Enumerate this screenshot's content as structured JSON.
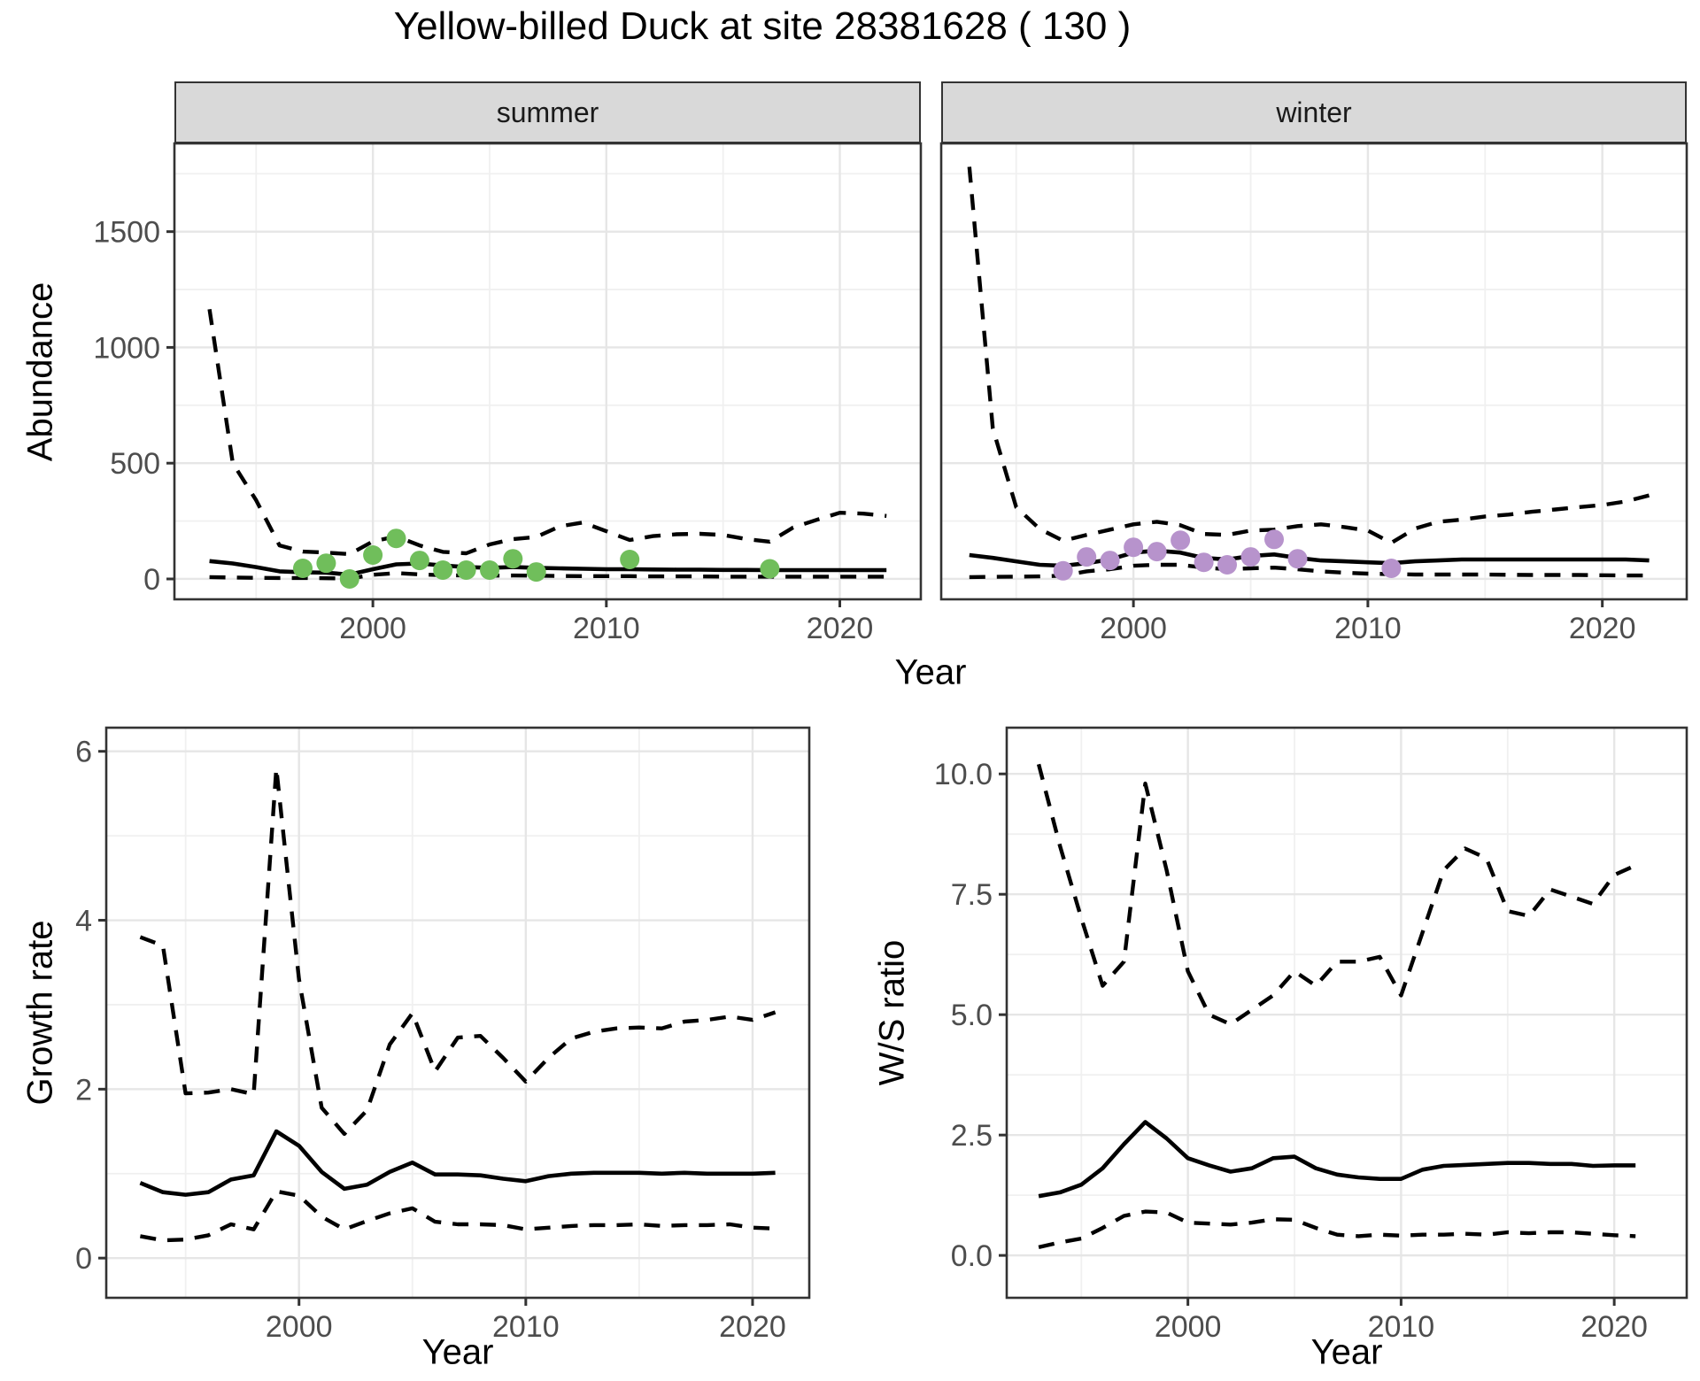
{
  "title": "Yellow-billed Duck at site 28381628 ( 130 )",
  "colors": {
    "summer_point": "#70BE5B",
    "winter_point": "#B793CC",
    "line": "#000000",
    "strip_bg": "#D9D9D9",
    "major_grid": "#E6E6E6",
    "minor_grid": "#F0F0F0",
    "panel_border": "#333333",
    "tick_label": "#4D4D4D"
  },
  "chart_data": [
    {
      "id": "abundance-summer",
      "type": "line",
      "facet_label": "summer",
      "xlabel": "Year",
      "ylabel": "Abundance",
      "xlim": [
        1991.5,
        2023.47
      ],
      "ylim": [
        -88,
        1881
      ],
      "grid": true,
      "legend": "none",
      "x_tick_values": [
        2000,
        2010,
        2020
      ],
      "x_tick_labels": [
        "2000",
        "2010",
        "2020"
      ],
      "x_minor_gridlines": [
        1995,
        2005,
        2015
      ],
      "y_tick_values": [
        0,
        500,
        1000,
        1500
      ],
      "y_tick_labels": [
        "0",
        "500",
        "1000",
        "1500"
      ],
      "y_minor_gridlines": [
        250,
        750,
        1250,
        1750
      ],
      "x": [
        1993,
        1994,
        1995,
        1996,
        1997,
        1998,
        1999,
        2000,
        2001,
        2002,
        2003,
        2004,
        2005,
        2006,
        2007,
        2008,
        2009,
        2010,
        2011,
        2012,
        2013,
        2014,
        2015,
        2016,
        2017,
        2018,
        2019,
        2020,
        2021,
        2022
      ],
      "series": [
        {
          "name": "estimate",
          "style": "solid",
          "values": [
            77,
            67,
            51,
            33,
            29,
            27,
            19,
            42,
            63,
            67,
            58,
            51,
            48,
            51,
            48,
            46,
            44,
            42,
            42,
            41,
            40,
            40,
            39,
            39,
            38,
            38,
            38,
            38,
            38,
            38
          ]
        },
        {
          "name": "upper-ci",
          "style": "dashed",
          "values": [
            1165,
            500,
            340,
            145,
            118,
            114,
            107,
            162,
            184,
            145,
            117,
            111,
            149,
            172,
            181,
            227,
            244,
            206,
            168,
            185,
            193,
            195,
            190,
            172,
            161,
            222,
            255,
            286,
            282,
            272
          ]
        },
        {
          "name": "lower-ci",
          "style": "dashed",
          "values": [
            8,
            6,
            5,
            4,
            4,
            3,
            2,
            18,
            25,
            20,
            16,
            15,
            14,
            15,
            14,
            13,
            12,
            12,
            12,
            11,
            11,
            11,
            10,
            10,
            10,
            10,
            10,
            10,
            10,
            10
          ]
        }
      ],
      "points": {
        "name": "observed-counts-summer",
        "color": "#70BE5B",
        "x": [
          1997,
          1998,
          1999,
          2000,
          2001,
          2002,
          2003,
          2004,
          2005,
          2006,
          2007,
          2011,
          2017
        ],
        "y": [
          46,
          68,
          0,
          103,
          175,
          80,
          38,
          38,
          38,
          87,
          30,
          84,
          44
        ]
      }
    },
    {
      "id": "abundance-winter",
      "type": "line",
      "facet_label": "winter",
      "xlabel": "Year",
      "ylabel": "Abundance",
      "xlim": [
        1991.8,
        2023.6
      ],
      "ylim": [
        -88,
        1881
      ],
      "grid": true,
      "legend": "none",
      "x_tick_values": [
        2000,
        2010,
        2020
      ],
      "x_tick_labels": [
        "2000",
        "2010",
        "2020"
      ],
      "x_minor_gridlines": [
        1995,
        2005,
        2015
      ],
      "y_tick_values": [
        0,
        500,
        1000,
        1500
      ],
      "y_tick_labels": [
        "0",
        "500",
        "1000",
        "1500"
      ],
      "y_minor_gridlines": [
        250,
        750,
        1250,
        1750
      ],
      "x": [
        1993,
        1994,
        1995,
        1996,
        1997,
        1998,
        1999,
        2000,
        2001,
        2002,
        2003,
        2004,
        2005,
        2006,
        2007,
        2008,
        2009,
        2010,
        2011,
        2012,
        2013,
        2014,
        2015,
        2016,
        2017,
        2018,
        2019,
        2020,
        2021,
        2022
      ],
      "series": [
        {
          "name": "estimate",
          "style": "solid",
          "values": [
            103,
            91,
            76,
            61,
            57,
            68,
            84,
            114,
            122,
            114,
            91,
            84,
            99,
            106,
            91,
            80,
            76,
            72,
            68,
            76,
            80,
            84,
            84,
            84,
            84,
            84,
            84,
            84,
            84,
            80
          ]
        },
        {
          "name": "upper-ci",
          "style": "dashed",
          "values": [
            1780,
            650,
            310,
            216,
            165,
            190,
            213,
            236,
            247,
            232,
            194,
            190,
            209,
            213,
            228,
            236,
            224,
            209,
            156,
            217,
            247,
            256,
            270,
            278,
            290,
            300,
            310,
            319,
            335,
            361
          ]
        },
        {
          "name": "lower-ci",
          "style": "dashed",
          "values": [
            8,
            9,
            10,
            11,
            14,
            33,
            42,
            57,
            61,
            61,
            49,
            42,
            46,
            49,
            42,
            33,
            27,
            23,
            21,
            19,
            19,
            19,
            19,
            18,
            17,
            17,
            17,
            16,
            15,
            15
          ]
        }
      ],
      "points": {
        "name": "observed-counts-winter",
        "color": "#B793CC",
        "x": [
          1997,
          1998,
          1999,
          2000,
          2001,
          2002,
          2003,
          2004,
          2005,
          2006,
          2007,
          2011
        ],
        "y": [
          35,
          95,
          80,
          137,
          118,
          167,
          72,
          61,
          95,
          171,
          87,
          46
        ]
      }
    },
    {
      "id": "growth-rate",
      "type": "line",
      "facet_label": "",
      "xlabel": "Year",
      "ylabel": "Growth rate",
      "xlim": [
        1991.5,
        2022.5
      ],
      "ylim": [
        -0.47,
        6.28
      ],
      "grid": true,
      "legend": "none",
      "x_tick_values": [
        2000,
        2010,
        2020
      ],
      "x_tick_labels": [
        "2000",
        "2010",
        "2020"
      ],
      "x_minor_gridlines": [
        1995,
        2005,
        2015
      ],
      "y_tick_values": [
        0,
        2,
        4,
        6
      ],
      "y_tick_labels": [
        "0",
        "2",
        "4",
        "6"
      ],
      "y_minor_gridlines": [
        1,
        3,
        5
      ],
      "x": [
        1993,
        1994,
        1995,
        1996,
        1997,
        1998,
        1999,
        2000,
        2001,
        2002,
        2003,
        2004,
        2005,
        2006,
        2007,
        2008,
        2009,
        2010,
        2011,
        2012,
        2013,
        2014,
        2015,
        2016,
        2017,
        2018,
        2019,
        2020,
        2021
      ],
      "series": [
        {
          "name": "estimate",
          "style": "solid",
          "values": [
            0.89,
            0.78,
            0.75,
            0.78,
            0.93,
            0.98,
            1.5,
            1.33,
            1.02,
            0.82,
            0.87,
            1.02,
            1.13,
            0.99,
            0.99,
            0.98,
            0.94,
            0.91,
            0.97,
            1.0,
            1.01,
            1.01,
            1.01,
            1.0,
            1.01,
            1.0,
            1.0,
            1.0,
            1.01
          ]
        },
        {
          "name": "upper-ci",
          "style": "dashed",
          "values": [
            3.8,
            3.7,
            1.95,
            1.96,
            2.0,
            1.94,
            5.8,
            3.3,
            1.78,
            1.47,
            1.75,
            2.53,
            2.9,
            2.21,
            2.61,
            2.63,
            2.37,
            2.09,
            2.37,
            2.6,
            2.68,
            2.72,
            2.73,
            2.72,
            2.8,
            2.82,
            2.86,
            2.82,
            2.91
          ]
        },
        {
          "name": "lower-ci",
          "style": "dashed",
          "values": [
            0.26,
            0.21,
            0.22,
            0.27,
            0.4,
            0.34,
            0.79,
            0.74,
            0.49,
            0.34,
            0.44,
            0.53,
            0.59,
            0.43,
            0.4,
            0.4,
            0.39,
            0.34,
            0.36,
            0.38,
            0.39,
            0.39,
            0.4,
            0.38,
            0.39,
            0.39,
            0.4,
            0.36,
            0.35
          ]
        }
      ],
      "points": null
    },
    {
      "id": "ws-ratio",
      "type": "line",
      "facet_label": "",
      "xlabel": "Year",
      "ylabel": "W/S ratio",
      "xlim": [
        1991.5,
        2023.4
      ],
      "ylim": [
        -0.88,
        10.96
      ],
      "grid": true,
      "legend": "none",
      "x_tick_values": [
        2000,
        2010,
        2020
      ],
      "x_tick_labels": [
        "2000",
        "2010",
        "2020"
      ],
      "x_minor_gridlines": [
        1995,
        2005,
        2015
      ],
      "y_tick_values": [
        0,
        2.5,
        5,
        7.5,
        10
      ],
      "y_tick_labels": [
        "0.0",
        "2.5",
        "5.0",
        "7.5",
        "10.0"
      ],
      "y_minor_gridlines": [
        1.25,
        3.75,
        6.25,
        8.75
      ],
      "x": [
        1993,
        1994,
        1995,
        1996,
        1997,
        1998,
        1999,
        2000,
        2001,
        2002,
        2003,
        2004,
        2005,
        2006,
        2007,
        2008,
        2009,
        2010,
        2011,
        2012,
        2013,
        2014,
        2015,
        2016,
        2017,
        2018,
        2019,
        2020,
        2021
      ],
      "series": [
        {
          "name": "estimate",
          "style": "solid",
          "values": [
            1.23,
            1.31,
            1.47,
            1.81,
            2.31,
            2.77,
            2.43,
            2.02,
            1.87,
            1.74,
            1.81,
            2.02,
            2.05,
            1.81,
            1.68,
            1.62,
            1.59,
            1.59,
            1.78,
            1.86,
            1.88,
            1.9,
            1.92,
            1.92,
            1.9,
            1.9,
            1.86,
            1.87,
            1.87
          ]
        },
        {
          "name": "upper-ci",
          "style": "dashed",
          "values": [
            10.2,
            8.5,
            7.0,
            5.6,
            6.1,
            9.8,
            8.0,
            5.9,
            5.0,
            4.8,
            5.1,
            5.4,
            5.9,
            5.6,
            6.1,
            6.1,
            6.2,
            5.4,
            6.7,
            8.0,
            8.45,
            8.25,
            7.15,
            7.05,
            7.6,
            7.45,
            7.3,
            7.9,
            8.1
          ]
        },
        {
          "name": "lower-ci",
          "style": "dashed",
          "values": [
            0.17,
            0.27,
            0.35,
            0.57,
            0.82,
            0.91,
            0.89,
            0.68,
            0.66,
            0.64,
            0.68,
            0.75,
            0.74,
            0.57,
            0.43,
            0.4,
            0.43,
            0.41,
            0.43,
            0.43,
            0.45,
            0.43,
            0.48,
            0.46,
            0.48,
            0.48,
            0.45,
            0.42,
            0.4
          ]
        }
      ],
      "points": null
    }
  ]
}
